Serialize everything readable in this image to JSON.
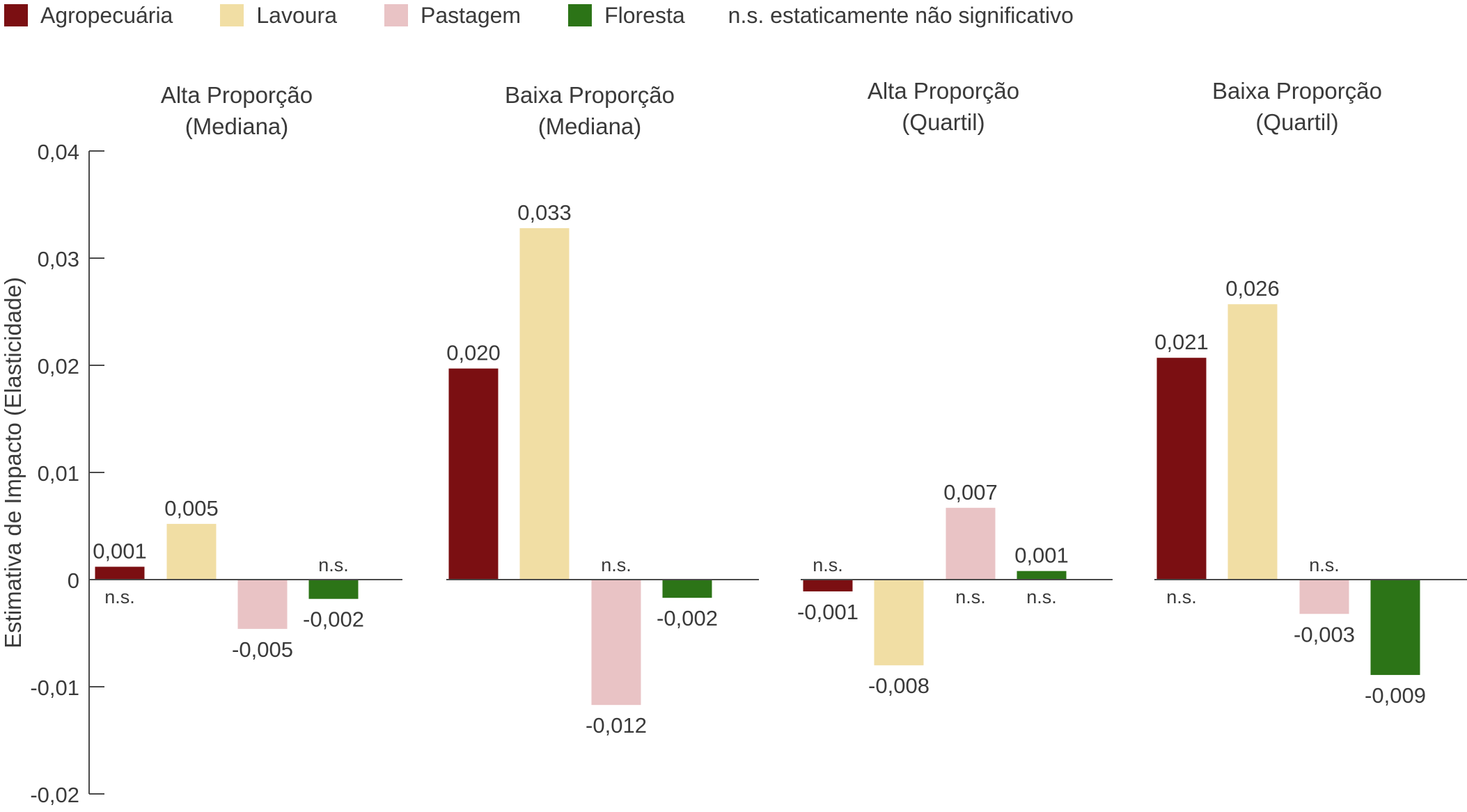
{
  "legend": {
    "items": [
      {
        "label": "Agropecuária",
        "color": "#7b0f12"
      },
      {
        "label": "Lavoura",
        "color": "#f1dea4"
      },
      {
        "label": "Pastagem",
        "color": "#e9c3c5"
      },
      {
        "label": "Floresta",
        "color": "#2c7417"
      }
    ],
    "note": "n.s. estaticamente não significativo"
  },
  "chart_data": {
    "type": "bar",
    "ylabel": "Estimativa de Impacto (Elasticidade)",
    "ylim": [
      -0.02,
      0.04
    ],
    "yticks": [
      -0.02,
      -0.01,
      0,
      0.01,
      0.02,
      0.03,
      0.04
    ],
    "ytick_labels": [
      "-0,02",
      "-0,01",
      "0",
      "0,01",
      "0,02",
      "0,03",
      "0,04"
    ],
    "grid": false,
    "legend_position": "top",
    "series_names": [
      "Agropecuária",
      "Lavoura",
      "Pastagem",
      "Floresta"
    ],
    "colors": [
      "#7b0f12",
      "#f1dea4",
      "#e9c3c5",
      "#2c7417"
    ],
    "ns_marker": "n.s.",
    "panels": [
      {
        "title": [
          "Alta Proporção",
          "(Mediana)"
        ],
        "values": [
          0.0012,
          0.0052,
          -0.0046,
          -0.0018
        ],
        "labels": [
          "0,001",
          "0,005",
          "-0,005",
          "-0,002"
        ],
        "not_significant": [
          true,
          false,
          false,
          true
        ]
      },
      {
        "title": [
          "Baixa Proporção",
          "(Mediana)"
        ],
        "values": [
          0.0197,
          0.0328,
          -0.0117,
          -0.0017
        ],
        "labels": [
          "0,020",
          "0,033",
          "-0,012",
          "-0,002"
        ],
        "not_significant": [
          false,
          false,
          true,
          false
        ]
      },
      {
        "title": [
          "Alta Proporção",
          "(Quartil)"
        ],
        "values": [
          -0.0011,
          -0.008,
          0.0067,
          0.0008
        ],
        "labels": [
          "-0,001",
          "-0,008",
          "0,007",
          "0,001"
        ],
        "not_significant": [
          true,
          false,
          true,
          true
        ]
      },
      {
        "title": [
          "Baixa Proporção",
          "(Quartil)"
        ],
        "values": [
          0.0207,
          0.0257,
          -0.0032,
          -0.0089
        ],
        "labels": [
          "0,021",
          "0,026",
          "-0,003",
          "-0,009"
        ],
        "not_significant": [
          true,
          false,
          true,
          false
        ]
      }
    ]
  }
}
